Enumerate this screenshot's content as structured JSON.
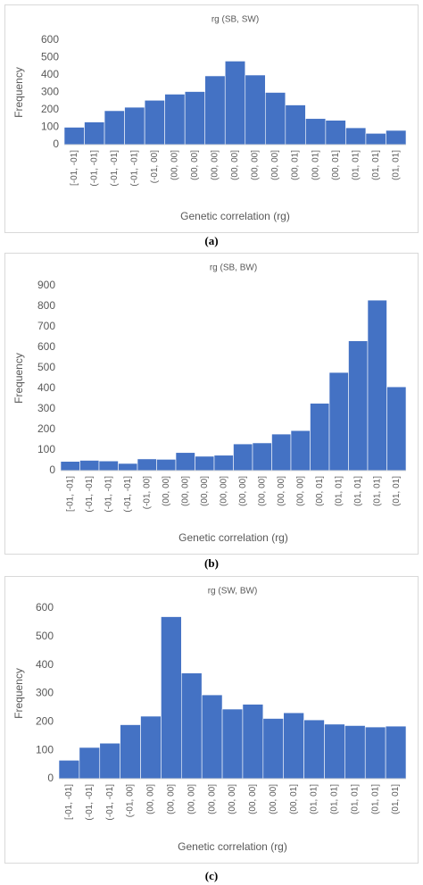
{
  "chart_data": [
    {
      "type": "bar",
      "title": "rg (SB, SW)",
      "xlabel": "Genetic correlation (rg)",
      "ylabel": "Frequency",
      "caption": "(a)",
      "color": "#4472c4",
      "categories": [
        "[-01, -01]",
        "(-01, -01]",
        "(-01, -01]",
        "(-01, -01]",
        "(-01, 00]",
        "(00, 00]",
        "(00, 00]",
        "(00, 00]",
        "(00, 00]",
        "(00, 00]",
        "(00, 00]",
        "(00, 01]",
        "(00, 01]",
        "(00, 01]",
        "(01, 01]",
        "(01, 01]",
        "(01, 01]"
      ],
      "values": [
        100,
        130,
        195,
        215,
        255,
        290,
        305,
        395,
        480,
        400,
        300,
        228,
        150,
        140,
        97,
        65,
        82
      ],
      "ylim": [
        0,
        600
      ],
      "yticks": [
        0,
        100,
        200,
        300,
        400,
        500,
        600
      ]
    },
    {
      "type": "bar",
      "title": "rg (SB, BW)",
      "xlabel": "Genetic correlation (rg)",
      "ylabel": "Frequency",
      "caption": "(b)",
      "color": "#4472c4",
      "categories": [
        "[-01, -01]",
        "(-01, -01]",
        "(-01, -01]",
        "(-01, -01]",
        "(-01, 00]",
        "(00, 00]",
        "(00, 00]",
        "(00, 00]",
        "(00, 00]",
        "(00, 00]",
        "(00, 00]",
        "(00, 00]",
        "(00, 00]",
        "(00, 01]",
        "(01, 01]",
        "(01, 01]",
        "(01, 01]",
        "(01, 01]"
      ],
      "values": [
        45,
        50,
        47,
        35,
        57,
        55,
        88,
        70,
        75,
        130,
        135,
        178,
        195,
        328,
        478,
        632,
        830,
        408
      ],
      "ylim": [
        0,
        900
      ],
      "yticks": [
        0,
        100,
        200,
        300,
        400,
        500,
        600,
        700,
        800,
        900
      ]
    },
    {
      "type": "bar",
      "title": "rg (SW, BW)",
      "xlabel": "Genetic correlation (rg)",
      "ylabel": "Frequency",
      "caption": "(c)",
      "color": "#4472c4",
      "categories": [
        "[-01, -01]",
        "(-01, -01]",
        "(-01, -01]",
        "(-01, 00]",
        "(00, 00]",
        "(00, 00]",
        "(00, 00]",
        "(00, 00]",
        "(00, 00]",
        "(00, 00]",
        "(00, 00]",
        "(00, 01]",
        "(01, 01]",
        "(01, 01]",
        "(01, 01]",
        "(01, 01]",
        "(01, 01]"
      ],
      "values": [
        65,
        110,
        125,
        190,
        220,
        570,
        372,
        295,
        245,
        262,
        212,
        232,
        207,
        192,
        187,
        182,
        185
      ],
      "ylim": [
        0,
        600
      ],
      "yticks": [
        0,
        100,
        200,
        300,
        400,
        500,
        600
      ]
    }
  ]
}
